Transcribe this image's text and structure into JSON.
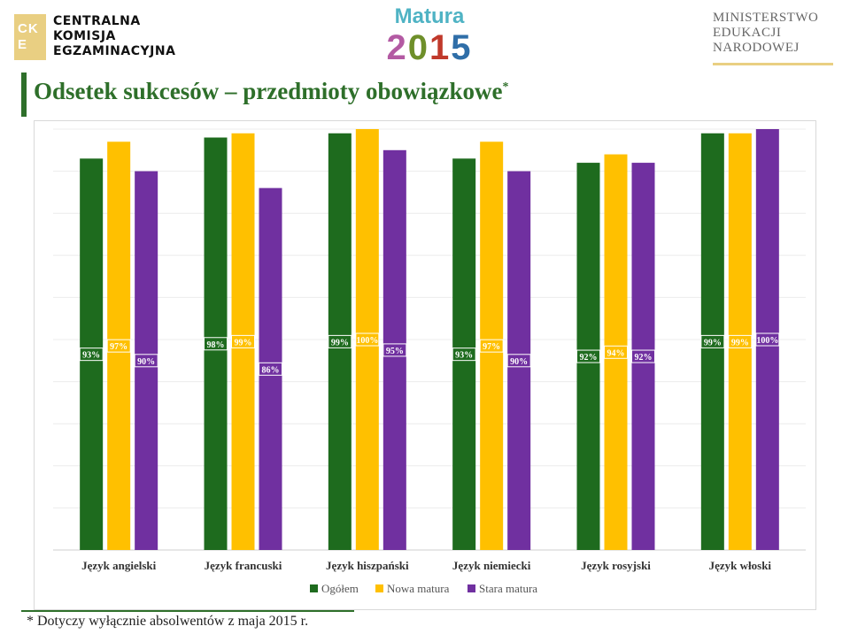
{
  "header": {
    "cke_mark": "CK E",
    "cke_lines": [
      "CENTRALNA",
      "KOMISJA",
      "EGZAMINACYJNA"
    ],
    "matura_word": "Matura",
    "matura_year": [
      "2",
      "0",
      "1",
      "5"
    ],
    "ministry_lines": [
      "MINISTERSTWO",
      "EDUKACJI",
      "NARODOWEJ"
    ]
  },
  "slide": {
    "title": "Odsetek sukcesów – przedmioty obowiązkowe",
    "title_mark": "*",
    "footnote": "* Dotyczy wyłącznie absolwentów z maja 2015 r."
  },
  "colors": {
    "ogolem": "#1e6b1e",
    "nowa": "#ffc000",
    "stara": "#7030a0",
    "title_green": "#2e6f2a",
    "cke_gold": "#e9cf82"
  },
  "chart_data": {
    "type": "bar",
    "categories": [
      "Język angielski",
      "Język francuski",
      "Język hiszpański",
      "Język niemiecki",
      "Język rosyjski",
      "Język włoski"
    ],
    "series": [
      {
        "name": "Ogółem",
        "values": [
          93,
          98,
          99,
          93,
          92,
          99
        ],
        "labels": [
          "93%",
          "98%",
          "99%",
          "93%",
          "92%",
          "99%"
        ]
      },
      {
        "name": "Nowa matura",
        "values": [
          97,
          99,
          100,
          97,
          94,
          99
        ],
        "labels": [
          "97%",
          "99%",
          "100%",
          "97%",
          "94%",
          "99%"
        ]
      },
      {
        "name": "Stara matura",
        "values": [
          90,
          86,
          95,
          90,
          92,
          100
        ],
        "labels": [
          "90%",
          "86%",
          "95%",
          "90%",
          "92%",
          "100%"
        ]
      }
    ],
    "ylim": [
      0,
      100
    ],
    "grid": true,
    "legend": "bottom"
  }
}
